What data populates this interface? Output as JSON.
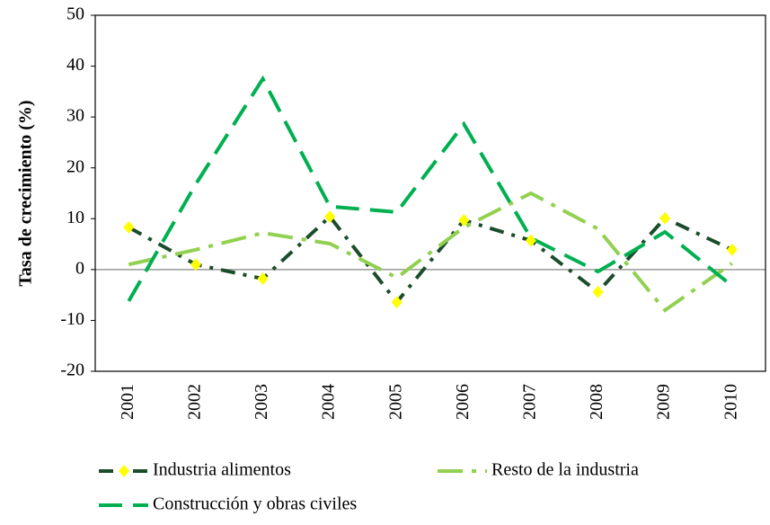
{
  "chart_data": {
    "type": "line",
    "y_label": "Tasa de crecimiento (%)",
    "categories": [
      "2001",
      "2002",
      "2003",
      "2004",
      "2005",
      "2006",
      "2007",
      "2008",
      "2009",
      "2010"
    ],
    "series": [
      {
        "name": "Industria alimentos",
        "color": "#1b4d2a",
        "dash": "dash-dot",
        "marker_color": "#ffff00",
        "values": [
          8.3,
          1,
          -1.8,
          10.4,
          -6.4,
          9.7,
          5.7,
          -4.4,
          10.1,
          3.9
        ]
      },
      {
        "name": "Resto de la industria",
        "color": "#92d050",
        "dash": "dash-dot-long",
        "values": [
          1,
          3.9,
          7.2,
          5.1,
          -1.6,
          8.3,
          15,
          8,
          -8,
          1.2
        ]
      },
      {
        "name": "Construcción y obras civiles",
        "color": "#00b050",
        "dash": "dash",
        "values": [
          -6.2,
          16.8,
          37.5,
          12.4,
          11.3,
          28.6,
          6.2,
          -0.4,
          7.4,
          -3.2
        ]
      }
    ],
    "ylim": [
      -20,
      50
    ],
    "yticks": [
      -20,
      -10,
      0,
      10,
      20,
      30,
      40,
      50
    ],
    "zero_line": true,
    "legend": "bottom"
  }
}
